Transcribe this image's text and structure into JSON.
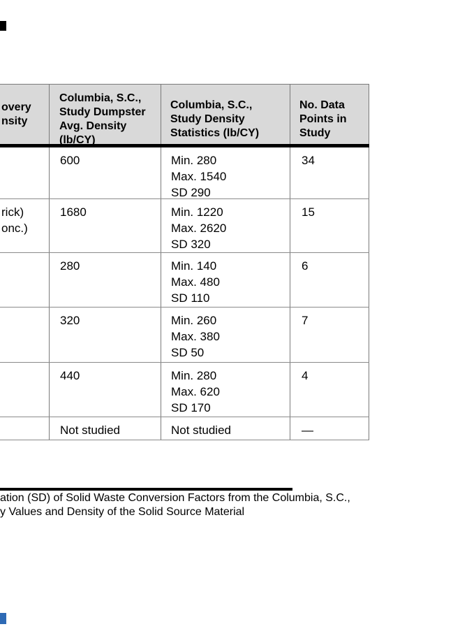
{
  "page": {
    "edge_tabs": {
      "top_tab_color": "#000000",
      "bottom_tab_color": "#2e6ab5"
    }
  },
  "table": {
    "colors": {
      "header_bg": "#d9d9d9",
      "thin_border": "#7a7a7a",
      "thick_border": "#000000"
    },
    "header": {
      "col1_lines": [
        "overy",
        "nsity"
      ],
      "col2_lines": [
        "Columbia, S.C.,",
        "Study Dumpster",
        "Avg. Density",
        "(lb/CY)"
      ],
      "col3_lines": [
        "Columbia, S.C.,",
        "Study Density",
        "Statistics (lb/CY)"
      ],
      "col4_lines": [
        "No. Data",
        "Points in",
        "Study"
      ]
    },
    "rows": [
      {
        "material_lines": [
          "",
          ""
        ],
        "avg_density": "600",
        "stats": [
          "Min. 280",
          "Max. 1540",
          "SD 290"
        ],
        "points": "34"
      },
      {
        "material_lines": [
          "rick)",
          "onc.)"
        ],
        "avg_density": "1680",
        "stats": [
          "Min. 1220",
          "Max. 2620",
          "SD 320"
        ],
        "points": "15"
      },
      {
        "material_lines": [
          "",
          ""
        ],
        "avg_density": "280",
        "stats": [
          "Min. 140",
          "Max. 480",
          "SD 110"
        ],
        "points": "6"
      },
      {
        "material_lines": [
          "",
          ""
        ],
        "avg_density": "320",
        "stats": [
          "Min. 260",
          "Max. 380",
          "SD 50"
        ],
        "points": "7"
      },
      {
        "material_lines": [
          "",
          ""
        ],
        "avg_density": "440",
        "stats": [
          "Min. 280",
          "Max. 620",
          "SD 170"
        ],
        "points": "4"
      },
      {
        "material_lines": [
          "",
          ""
        ],
        "avg_density": "Not studied",
        "stats": [
          "Not studied"
        ],
        "points": "—"
      }
    ]
  },
  "caption": {
    "line1": "ation (SD) of Solid Waste Conversion Factors from the Columbia, S.C.,",
    "line2": "y Values and Density of the Solid Source Material"
  }
}
